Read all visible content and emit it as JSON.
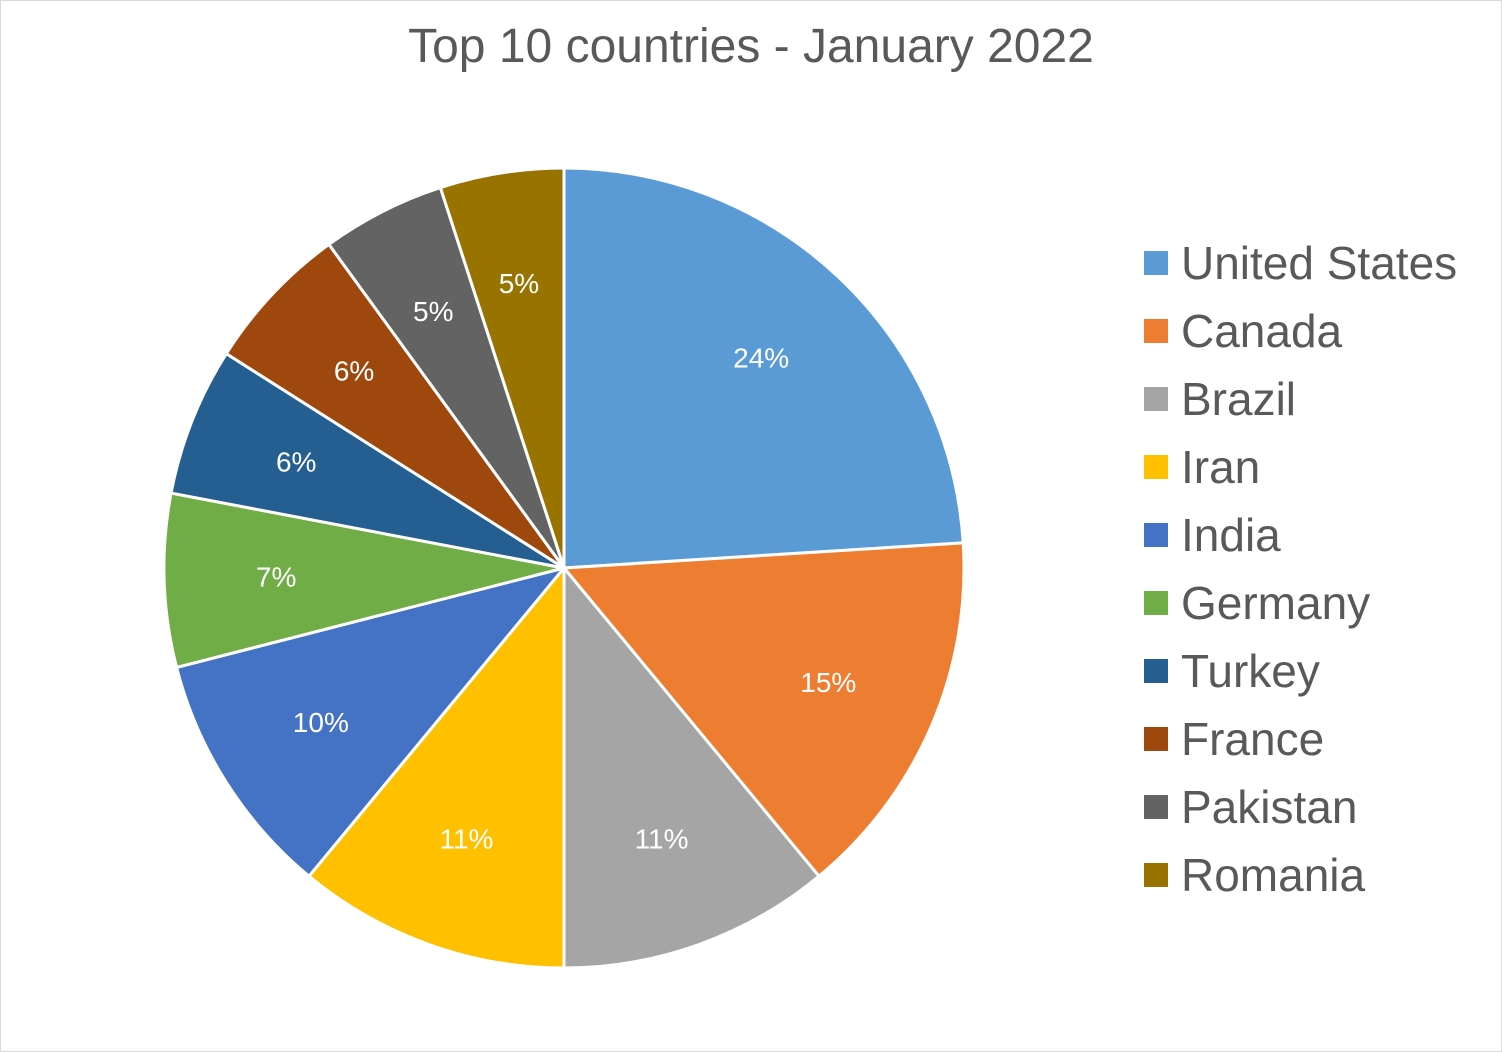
{
  "chart_data": {
    "type": "pie",
    "title": "Top 10 countries - January 2022",
    "legend_position": "right",
    "slices": [
      {
        "label": "United States",
        "value": 24,
        "display": "24%",
        "color": "#5b9bd5"
      },
      {
        "label": "Canada",
        "value": 15,
        "display": "15%",
        "color": "#ed7d31"
      },
      {
        "label": "Brazil",
        "value": 11,
        "display": "11%",
        "color": "#a5a5a5"
      },
      {
        "label": "Iran",
        "value": 11,
        "display": "11%",
        "color": "#ffc000"
      },
      {
        "label": "India",
        "value": 10,
        "display": "10%",
        "color": "#4472c4"
      },
      {
        "label": "Germany",
        "value": 7,
        "display": "7%",
        "color": "#70ad47"
      },
      {
        "label": "Turkey",
        "value": 6,
        "display": "6%",
        "color": "#255e91"
      },
      {
        "label": "France",
        "value": 6,
        "display": "6%",
        "color": "#9e480e"
      },
      {
        "label": "Pakistan",
        "value": 5,
        "display": "5%",
        "color": "#636363"
      },
      {
        "label": "Romania",
        "value": 5,
        "display": "5%",
        "color": "#997300"
      }
    ]
  }
}
